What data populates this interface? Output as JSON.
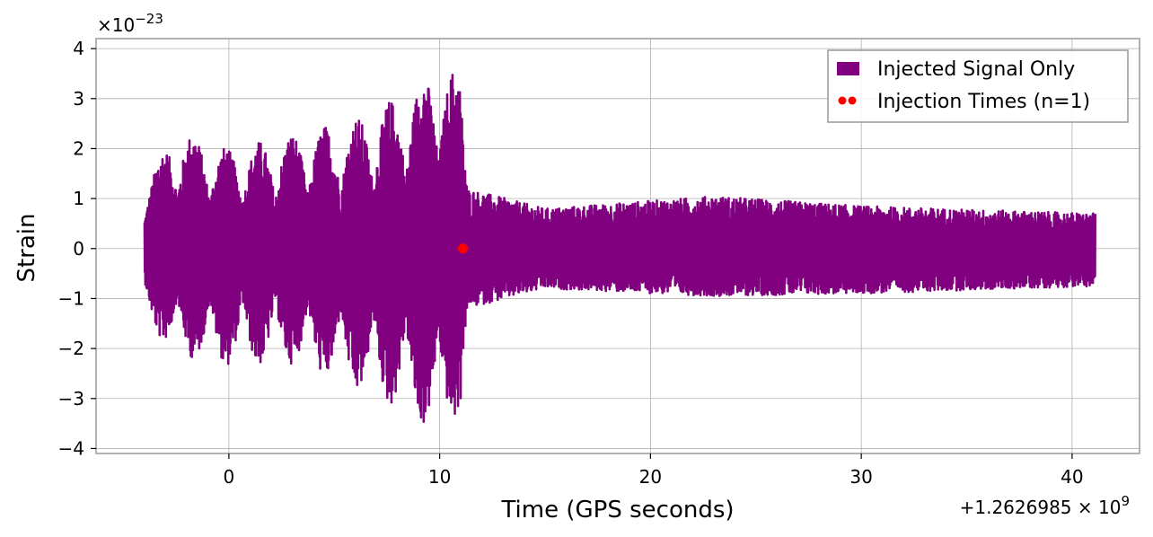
{
  "chart_data": {
    "type": "line",
    "xlabel": "Time (GPS seconds)",
    "ylabel": "Strain",
    "x_offset_label": "+1.2626985 × 10",
    "x_offset_exponent": "9",
    "y_scale_label": "×10",
    "y_scale_exponent": "−23",
    "xlim": [
      -6.3,
      43.2
    ],
    "ylim": [
      -4.1,
      4.2
    ],
    "x_ticks": [
      0,
      10,
      20,
      30,
      40
    ],
    "x_tick_labels": [
      "0",
      "10",
      "20",
      "30",
      "40"
    ],
    "y_ticks": [
      -4,
      -3,
      -2,
      -1,
      0,
      1,
      2,
      3,
      4
    ],
    "y_tick_labels": [
      "−4",
      "−3",
      "−2",
      "−1",
      "0",
      "1",
      "2",
      "3",
      "4"
    ],
    "grid": true,
    "legend_position": "top-right",
    "series": [
      {
        "name": "Injected Signal Only",
        "kind": "strain-trace",
        "color": "#800080",
        "x_range": [
          -4.0,
          41.1
        ],
        "envelope_points": [
          {
            "x": -4.0,
            "y_max": 1.35,
            "y_min": -1.45
          },
          {
            "x": -2.5,
            "y_max": 2.45,
            "y_min": -2.15
          },
          {
            "x": 0.0,
            "y_max": 2.0,
            "y_min": -2.35
          },
          {
            "x": 3.0,
            "y_max": 2.3,
            "y_min": -2.3
          },
          {
            "x": 6.0,
            "y_max": 2.6,
            "y_min": -2.85
          },
          {
            "x": 8.0,
            "y_max": 3.05,
            "y_min": -3.2
          },
          {
            "x": 10.0,
            "y_max": 3.8,
            "y_min": -3.75
          },
          {
            "x": 11.0,
            "y_max": 3.5,
            "y_min": -3.3
          },
          {
            "x": 11.3,
            "y_max": 1.2,
            "y_min": -1.2
          },
          {
            "x": 15.0,
            "y_max": 0.8,
            "y_min": -0.8
          },
          {
            "x": 23.0,
            "y_max": 1.05,
            "y_min": -0.95
          },
          {
            "x": 30.0,
            "y_max": 0.85,
            "y_min": -0.9
          },
          {
            "x": 41.1,
            "y_max": 0.7,
            "y_min": -0.75
          }
        ]
      },
      {
        "name": "Injection Times (n=1)",
        "kind": "scatter",
        "color": "#ff0000",
        "points": [
          {
            "x": 11.1,
            "y": 0
          }
        ]
      }
    ]
  }
}
